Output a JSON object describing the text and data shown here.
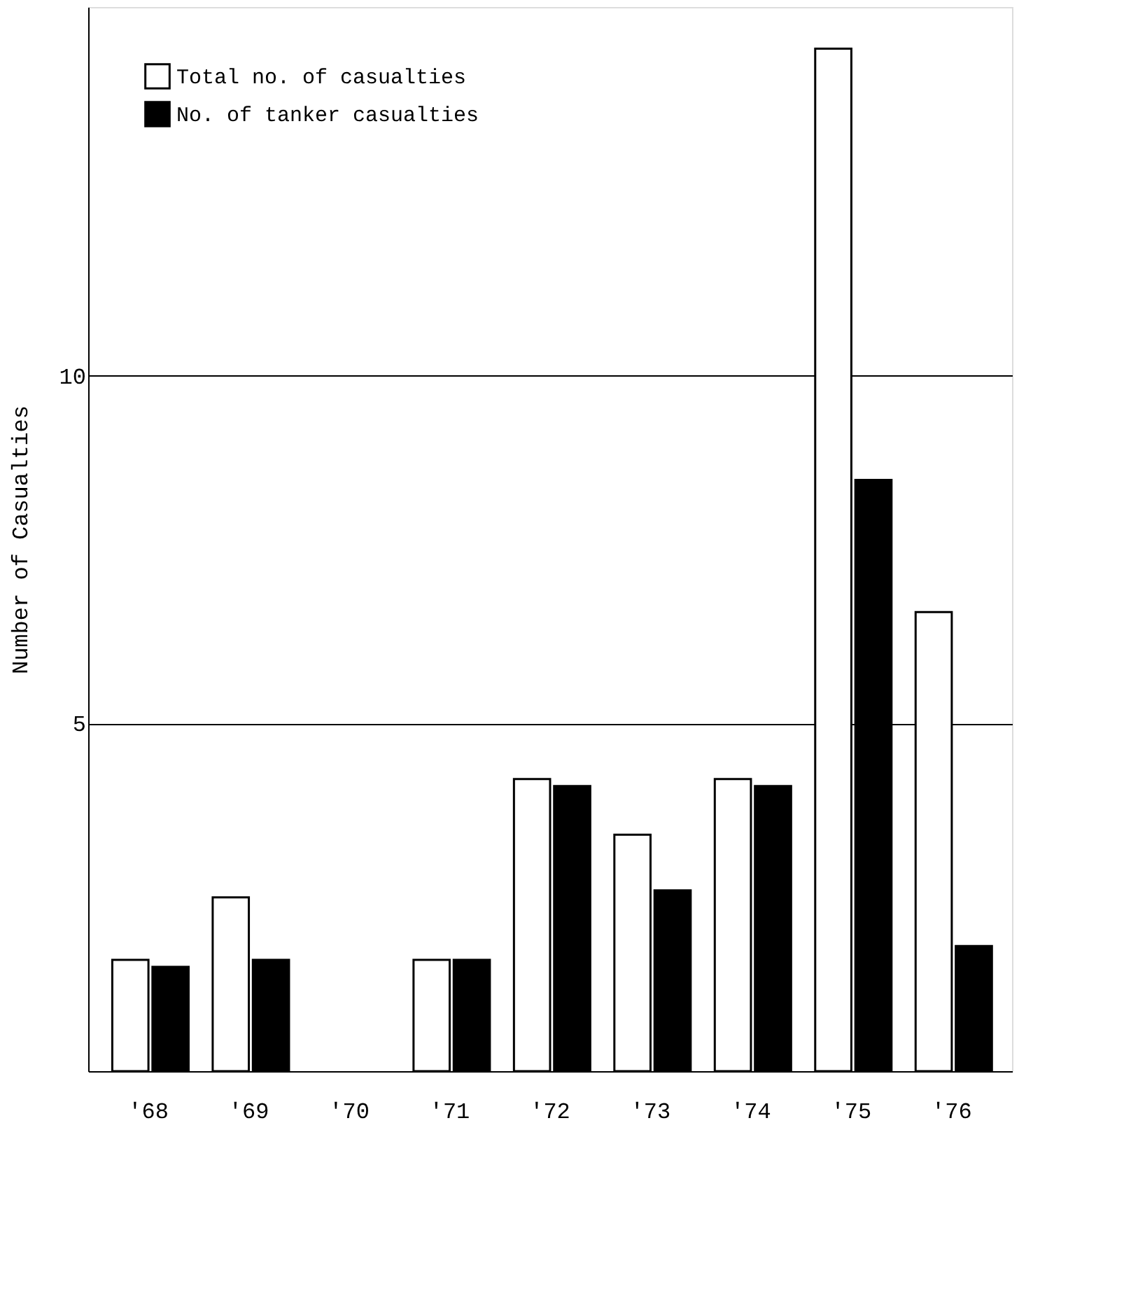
{
  "chart_data": {
    "type": "bar",
    "ylabel": "Number of Casualties",
    "categories": [
      "'68",
      "'69",
      "'70",
      "'71",
      "'72",
      "'73",
      "'74",
      "'75",
      "'76"
    ],
    "series": [
      {
        "name": "Total no. of casualties",
        "color": "#ffffff",
        "values": [
          1.6,
          2.5,
          null,
          1.6,
          4.2,
          3.4,
          4.2,
          14.7,
          6.6
        ]
      },
      {
        "name": "No. of tanker casualties",
        "color": "#000000",
        "values": [
          1.5,
          1.6,
          null,
          1.6,
          4.1,
          2.6,
          4.1,
          8.5,
          1.8
        ]
      }
    ],
    "ylim": [
      0,
      15.3
    ],
    "yticks": [
      5,
      10
    ],
    "grid": "y",
    "legend": "top left"
  }
}
